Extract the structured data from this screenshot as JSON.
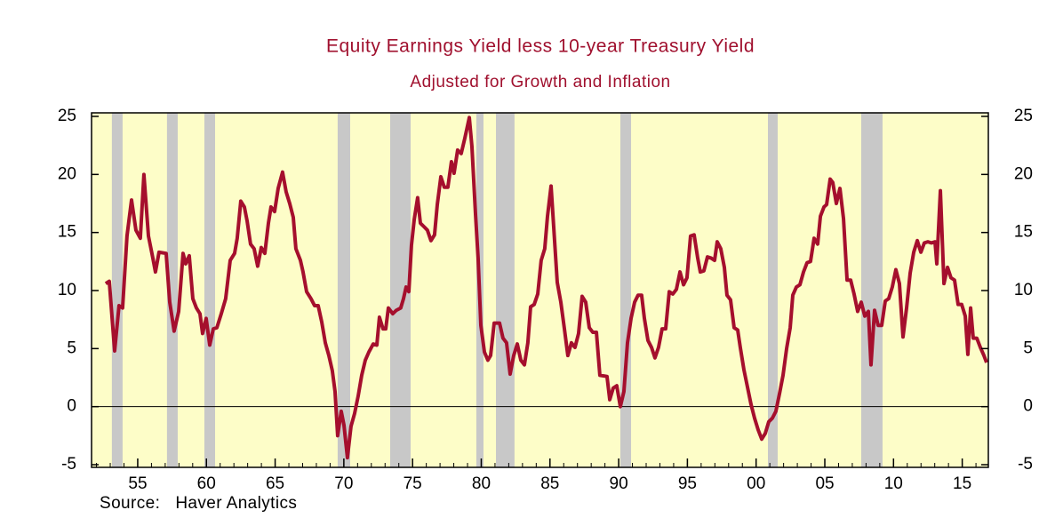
{
  "chart_data": {
    "type": "line",
    "title": "Equity Earnings Yield less 10-year Treasury Yield",
    "subtitle": "Adjusted for Growth and Inflation",
    "source": "Source:   Haver Analytics",
    "color": "#a50f2d",
    "plot_background": "#fdfdc8",
    "shade_color": "#c8c8c8",
    "zero_line": true,
    "xlim": [
      1951.64,
      2016.9
    ],
    "xticks": [
      {
        "value": 1955,
        "label": "55"
      },
      {
        "value": 1960,
        "label": "60"
      },
      {
        "value": 1965,
        "label": "65"
      },
      {
        "value": 1970,
        "label": "70"
      },
      {
        "value": 1975,
        "label": "75"
      },
      {
        "value": 1980,
        "label": "80"
      },
      {
        "value": 1985,
        "label": "85"
      },
      {
        "value": 1990,
        "label": "90"
      },
      {
        "value": 1995,
        "label": "95"
      },
      {
        "value": 2000,
        "label": "00"
      },
      {
        "value": 2005,
        "label": "05"
      },
      {
        "value": 2010,
        "label": "10"
      },
      {
        "value": 2015,
        "label": "15"
      }
    ],
    "ylim": [
      -5,
      25
    ],
    "yticks": [
      -5,
      0,
      5,
      10,
      15,
      20,
      25
    ],
    "y2lim": [
      -5,
      25
    ],
    "y2ticks": [
      -5,
      0,
      5,
      10,
      15,
      20,
      25
    ],
    "shaded_periods": [
      [
        1953.12,
        1953.9
      ],
      [
        1957.13,
        1957.91
      ],
      [
        1959.85,
        1960.63
      ],
      [
        1969.55,
        1970.46
      ],
      [
        1973.37,
        1974.86
      ],
      [
        1979.64,
        1980.16
      ],
      [
        1981.07,
        1982.42
      ],
      [
        1990.12,
        1990.9
      ],
      [
        2000.86,
        2001.57
      ],
      [
        2007.65,
        2009.2
      ]
    ],
    "x": [
      1952.67,
      1952.93,
      1953.32,
      1953.64,
      1953.9,
      1954.22,
      1954.55,
      1954.87,
      1955.19,
      1955.45,
      1955.78,
      1956.1,
      1956.29,
      1956.55,
      1957.07,
      1957.33,
      1957.65,
      1957.98,
      1958.3,
      1958.49,
      1958.75,
      1959.01,
      1959.27,
      1959.53,
      1959.72,
      1959.98,
      1960.24,
      1960.5,
      1960.76,
      1961.08,
      1961.4,
      1961.73,
      1962.05,
      1962.24,
      1962.5,
      1962.76,
      1962.96,
      1963.21,
      1963.47,
      1963.73,
      1963.99,
      1964.25,
      1964.51,
      1964.7,
      1964.96,
      1965.22,
      1965.54,
      1965.8,
      1966.06,
      1966.32,
      1966.51,
      1966.84,
      1967.03,
      1967.29,
      1967.61,
      1967.87,
      1968.13,
      1968.39,
      1968.65,
      1968.91,
      1969.16,
      1969.36,
      1969.55,
      1969.81,
      1970.01,
      1970.26,
      1970.52,
      1970.78,
      1971.04,
      1971.3,
      1971.56,
      1971.82,
      1972.14,
      1972.4,
      1972.59,
      1972.85,
      1973.05,
      1973.24,
      1973.56,
      1973.82,
      1974.14,
      1974.34,
      1974.53,
      1974.73,
      1974.92,
      1975.12,
      1975.37,
      1975.57,
      1975.83,
      1976.08,
      1976.34,
      1976.6,
      1976.8,
      1977.06,
      1977.31,
      1977.57,
      1977.83,
      1978.02,
      1978.28,
      1978.54,
      1978.8,
      1979.13,
      1979.32,
      1979.58,
      1979.77,
      1979.97,
      1980.23,
      1980.48,
      1980.68,
      1980.94,
      1981.33,
      1981.58,
      1981.84,
      1982.1,
      1982.36,
      1982.62,
      1982.88,
      1983.14,
      1983.39,
      1983.59,
      1983.85,
      1984.11,
      1984.36,
      1984.62,
      1984.82,
      1985.08,
      1985.27,
      1985.53,
      1985.79,
      1986.05,
      1986.3,
      1986.56,
      1986.82,
      1987.08,
      1987.34,
      1987.6,
      1987.86,
      1988.12,
      1988.38,
      1988.63,
      1989.15,
      1989.35,
      1989.6,
      1989.86,
      1990.12,
      1990.38,
      1990.64,
      1990.9,
      1991.16,
      1991.41,
      1991.67,
      1991.87,
      1992.13,
      1992.39,
      1992.64,
      1992.9,
      1993.16,
      1993.42,
      1993.68,
      1993.94,
      1994.2,
      1994.46,
      1994.72,
      1994.97,
      1995.23,
      1995.49,
      1995.75,
      1995.94,
      1996.2,
      1996.46,
      1996.72,
      1996.98,
      1997.17,
      1997.43,
      1997.69,
      1997.88,
      1998.14,
      1998.4,
      1998.66,
      1998.85,
      1999.11,
      1999.37,
      1999.63,
      1999.89,
      2000.15,
      2000.41,
      2000.67,
      2000.92,
      2001.18,
      2001.44,
      2001.7,
      2001.96,
      2002.22,
      2002.48,
      2002.67,
      2002.93,
      2003.19,
      2003.45,
      2003.71,
      2003.96,
      2004.22,
      2004.48,
      2004.68,
      2004.94,
      2005.13,
      2005.39,
      2005.58,
      2005.84,
      2006.1,
      2006.36,
      2006.62,
      2006.88,
      2007.13,
      2007.39,
      2007.65,
      2007.91,
      2008.17,
      2008.36,
      2008.62,
      2008.88,
      2009.14,
      2009.4,
      2009.65,
      2009.91,
      2010.17,
      2010.43,
      2010.69,
      2010.95,
      2011.21,
      2011.47,
      2011.73,
      2011.99,
      2012.24,
      2012.5,
      2012.76,
      2013.02,
      2013.15,
      2013.41,
      2013.67,
      2013.93,
      2014.18,
      2014.44,
      2014.7,
      2014.96,
      2015.22,
      2015.41,
      2015.61,
      2015.8,
      2016.06,
      2016.32,
      2016.58,
      2016.77
    ],
    "values": [
      10.6,
      10.8,
      4.8,
      8.7,
      8.5,
      14.7,
      17.8,
      15.2,
      14.5,
      20.0,
      14.7,
      12.8,
      11.6,
      13.3,
      13.2,
      9.0,
      6.5,
      8.2,
      13.2,
      12.3,
      13.0,
      9.3,
      8.5,
      8.0,
      6.3,
      7.6,
      5.3,
      6.7,
      6.8,
      8.0,
      9.3,
      12.6,
      13.2,
      14.5,
      17.7,
      17.2,
      16.0,
      14.0,
      13.6,
      12.1,
      13.7,
      13.2,
      15.8,
      17.2,
      16.8,
      18.8,
      20.2,
      18.5,
      17.5,
      16.3,
      13.6,
      12.6,
      11.6,
      9.9,
      9.3,
      8.7,
      8.7,
      7.3,
      5.5,
      4.4,
      3.1,
      1.3,
      -2.5,
      -0.4,
      -1.6,
      -4.4,
      -1.7,
      -0.6,
      0.9,
      2.7,
      4.0,
      4.7,
      5.4,
      5.3,
      7.7,
      6.7,
      6.7,
      8.5,
      8.0,
      8.3,
      8.5,
      9.3,
      10.3,
      9.9,
      13.9,
      16.1,
      18.0,
      15.8,
      15.5,
      15.2,
      14.3,
      14.8,
      17.4,
      19.8,
      18.9,
      18.9,
      21.1,
      20.1,
      22.1,
      21.8,
      23.1,
      24.9,
      22.4,
      16.6,
      12.8,
      7.0,
      4.7,
      4.0,
      4.4,
      7.2,
      7.2,
      5.9,
      5.5,
      2.8,
      4.4,
      5.4,
      4.0,
      3.6,
      5.5,
      8.6,
      8.8,
      9.7,
      12.6,
      13.6,
      16.4,
      19.0,
      15.5,
      10.7,
      9.0,
      6.7,
      4.4,
      5.5,
      5.1,
      6.3,
      9.5,
      9.0,
      6.8,
      6.4,
      6.4,
      2.7,
      2.6,
      0.6,
      1.6,
      1.8,
      0.0,
      1.3,
      5.5,
      7.6,
      9.0,
      9.6,
      9.6,
      7.6,
      5.7,
      5.1,
      4.2,
      5.1,
      6.7,
      6.7,
      9.9,
      9.7,
      10.1,
      11.6,
      10.5,
      11.1,
      14.7,
      14.8,
      12.8,
      11.6,
      11.7,
      12.9,
      12.8,
      12.6,
      14.2,
      13.6,
      12.0,
      9.6,
      9.2,
      6.8,
      6.6,
      5.1,
      3.2,
      1.7,
      0.2,
      -1.0,
      -2.0,
      -2.8,
      -2.3,
      -1.3,
      -1.0,
      -0.4,
      1.1,
      2.7,
      5.0,
      6.8,
      9.6,
      10.3,
      10.5,
      11.6,
      12.4,
      12.5,
      14.5,
      14.0,
      16.4,
      17.2,
      17.4,
      19.6,
      19.3,
      17.5,
      18.8,
      16.2,
      10.9,
      10.9,
      9.7,
      8.2,
      9.0,
      7.8,
      8.2,
      3.6,
      8.3,
      7.0,
      7.0,
      9.1,
      9.3,
      10.3,
      11.8,
      10.6,
      6.0,
      8.5,
      11.5,
      13.3,
      14.3,
      13.3,
      14.1,
      14.2,
      14.1,
      14.2,
      12.3,
      18.6,
      10.6,
      12.0,
      11.1,
      10.9,
      8.8,
      8.8,
      7.8,
      4.5,
      8.5,
      5.9,
      5.9,
      5.1,
      4.4,
      3.8
    ]
  }
}
